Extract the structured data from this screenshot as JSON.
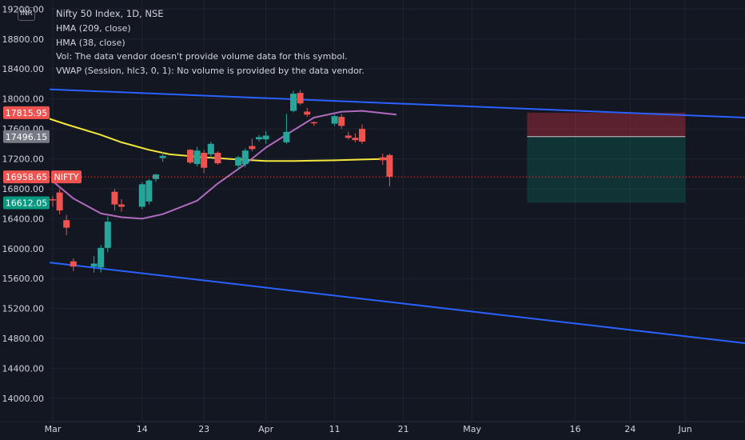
{
  "currency_badge": "INR",
  "legend": {
    "title": "Nifty 50 Index, 1D, NSE",
    "lines": [
      "HMA (209, close)",
      "HMA (38, close)",
      "Vol: The data vendor doesn't provide volume data for this symbol.",
      "VWAP (Session, hlc3, 0, 1): No volume is provided by the data vendor."
    ]
  },
  "colors": {
    "background": "#131722",
    "grid": "#1f2431",
    "axis_text": "#d1d4dc",
    "up": "#26a69a",
    "down": "#ef5350",
    "hma209": "#f5e63c",
    "hma38": "#b06bbf",
    "channel": "#2962ff",
    "price_line": "#ef5350"
  },
  "chart_data": {
    "type": "candlestick",
    "symbol": "NIFTY",
    "x_axis_ticks": [
      "Mar",
      "14",
      "23",
      "Apr",
      "11",
      "21",
      "May",
      "16",
      "24",
      "Jun"
    ],
    "y_axis_ticks": [
      "19200.00",
      "18800.00",
      "18400.00",
      "18000.00",
      "17600.00",
      "17200.00",
      "16800.00",
      "16400.00",
      "16000.00",
      "15600.00",
      "15200.00",
      "14800.00",
      "14400.00",
      "14000.00"
    ],
    "ylim": [
      13700,
      19300
    ],
    "grid": true,
    "candles": [
      {
        "date": "Mar 01",
        "o": 16660,
        "h": 16700,
        "l": 16560,
        "c": 16650
      },
      {
        "date": "Mar 02",
        "o": 16750,
        "h": 16800,
        "l": 16460,
        "c": 16510
      },
      {
        "date": "Mar 03",
        "o": 16380,
        "h": 16450,
        "l": 16180,
        "c": 16280
      },
      {
        "date": "Mar 04",
        "o": 15830,
        "h": 15870,
        "l": 15700,
        "c": 15760
      },
      {
        "date": "Mar 07",
        "o": 15760,
        "h": 15900,
        "l": 15680,
        "c": 15800
      },
      {
        "date": "Mar 08",
        "o": 15750,
        "h": 16050,
        "l": 15680,
        "c": 16010
      },
      {
        "date": "Mar 09",
        "o": 16010,
        "h": 16430,
        "l": 15950,
        "c": 16360
      },
      {
        "date": "Mar 10",
        "o": 16760,
        "h": 16800,
        "l": 16510,
        "c": 16590
      },
      {
        "date": "Mar 11",
        "o": 16590,
        "h": 16660,
        "l": 16490,
        "c": 16560
      },
      {
        "date": "Mar 14",
        "o": 16560,
        "h": 16890,
        "l": 16530,
        "c": 16860
      },
      {
        "date": "Mar 15",
        "o": 16630,
        "h": 16930,
        "l": 16590,
        "c": 16910
      },
      {
        "date": "Mar 16",
        "o": 16930,
        "h": 17000,
        "l": 16890,
        "c": 16990
      },
      {
        "date": "Mar 17",
        "o": 17210,
        "h": 17290,
        "l": 17160,
        "c": 17240
      },
      {
        "date": "Mar 21",
        "o": 17320,
        "h": 17330,
        "l": 17130,
        "c": 17150
      },
      {
        "date": "Mar 22",
        "o": 17130,
        "h": 17360,
        "l": 17100,
        "c": 17310
      },
      {
        "date": "Mar 23",
        "o": 17280,
        "h": 17320,
        "l": 17010,
        "c": 17080
      },
      {
        "date": "Mar 24",
        "o": 17260,
        "h": 17430,
        "l": 17200,
        "c": 17400
      },
      {
        "date": "Mar 25",
        "o": 17280,
        "h": 17300,
        "l": 17120,
        "c": 17140
      },
      {
        "date": "Mar 28",
        "o": 17110,
        "h": 17240,
        "l": 17050,
        "c": 17220
      },
      {
        "date": "Mar 29",
        "o": 17130,
        "h": 17340,
        "l": 17090,
        "c": 17310
      },
      {
        "date": "Mar 30",
        "o": 17370,
        "h": 17470,
        "l": 17300,
        "c": 17330
      },
      {
        "date": "Mar 31",
        "o": 17460,
        "h": 17520,
        "l": 17430,
        "c": 17490
      },
      {
        "date": "Apr 01",
        "o": 17460,
        "h": 17570,
        "l": 17400,
        "c": 17510
      },
      {
        "date": "Apr 04",
        "o": 17420,
        "h": 17800,
        "l": 17400,
        "c": 17560
      },
      {
        "date": "Apr 05",
        "o": 17840,
        "h": 18110,
        "l": 17820,
        "c": 18070
      },
      {
        "date": "Apr 06",
        "o": 18080,
        "h": 18120,
        "l": 17920,
        "c": 17940
      },
      {
        "date": "Apr 07",
        "o": 17830,
        "h": 17880,
        "l": 17760,
        "c": 17790
      },
      {
        "date": "Apr 08",
        "o": 17690,
        "h": 17700,
        "l": 17640,
        "c": 17680
      },
      {
        "date": "Apr 11",
        "o": 17670,
        "h": 17790,
        "l": 17640,
        "c": 17770
      },
      {
        "date": "Apr 12",
        "o": 17760,
        "h": 17800,
        "l": 17600,
        "c": 17640
      },
      {
        "date": "Apr 13",
        "o": 17510,
        "h": 17560,
        "l": 17460,
        "c": 17480
      },
      {
        "date": "Apr 14",
        "o": 17480,
        "h": 17540,
        "l": 17420,
        "c": 17450
      },
      {
        "date": "Apr 15",
        "o": 17600,
        "h": 17660,
        "l": 17400,
        "c": 17430
      },
      {
        "date": "Apr 18",
        "o": 17220,
        "h": 17270,
        "l": 17120,
        "c": 17180
      },
      {
        "date": "Apr 19",
        "o": 17250,
        "h": 17270,
        "l": 16830,
        "c": 16960
      }
    ],
    "hma_209": [
      {
        "x": "Mar 01",
        "y": 16900
      },
      {
        "x": "Mar 04",
        "y": 16670
      },
      {
        "x": "Mar 08",
        "y": 16470
      },
      {
        "x": "Mar 11",
        "y": 16420
      },
      {
        "x": "Mar 14",
        "y": 16400
      },
      {
        "x": "Mar 17",
        "y": 16460
      },
      {
        "x": "Mar 22",
        "y": 16640
      },
      {
        "x": "Mar 25",
        "y": 16870
      },
      {
        "x": "Mar 29",
        "y": 17130
      },
      {
        "x": "Apr 01",
        "y": 17350
      },
      {
        "x": "Apr 05",
        "y": 17580
      },
      {
        "x": "Apr 08",
        "y": 17750
      },
      {
        "x": "Apr 12",
        "y": 17830
      },
      {
        "x": "Apr 15",
        "y": 17840
      },
      {
        "x": "Apr 20",
        "y": 17790
      }
    ],
    "hma_38": [
      {
        "x": "Feb 28",
        "y": 17750
      },
      {
        "x": "Mar 03",
        "y": 17660
      },
      {
        "x": "Mar 08",
        "y": 17520
      },
      {
        "x": "Mar 11",
        "y": 17420
      },
      {
        "x": "Mar 15",
        "y": 17320
      },
      {
        "x": "Mar 18",
        "y": 17260
      },
      {
        "x": "Mar 23",
        "y": 17220
      },
      {
        "x": "Mar 28",
        "y": 17190
      },
      {
        "x": "Apr 01",
        "y": 17170
      },
      {
        "x": "Apr 05",
        "y": 17170
      },
      {
        "x": "Apr 11",
        "y": 17180
      },
      {
        "x": "Apr 15",
        "y": 17190
      },
      {
        "x": "Apr 19",
        "y": 17200
      }
    ],
    "channel_upper": [
      {
        "x": "Feb 28",
        "y": 18130
      },
      {
        "x": "Jun 15",
        "y": 17730
      }
    ],
    "channel_lower": [
      {
        "x": "Feb 28",
        "y": 15820
      },
      {
        "x": "Jun 15",
        "y": 14680
      }
    ],
    "position": {
      "start": "May 09",
      "end": "Jun 01",
      "stop": 17815.95,
      "entry": 17496.15,
      "target": 16612.05
    },
    "price_labels": [
      {
        "value": 17815.95,
        "label": "17815.95",
        "color": "#ef5350"
      },
      {
        "value": 17496.15,
        "label": "17496.15",
        "color": "#787b86"
      },
      {
        "value": 16958.65,
        "label": "16958.65",
        "color": "#ef5350",
        "tag": "NIFTY"
      },
      {
        "value": 16612.05,
        "label": "16612.05",
        "color": "#089981"
      }
    ]
  }
}
